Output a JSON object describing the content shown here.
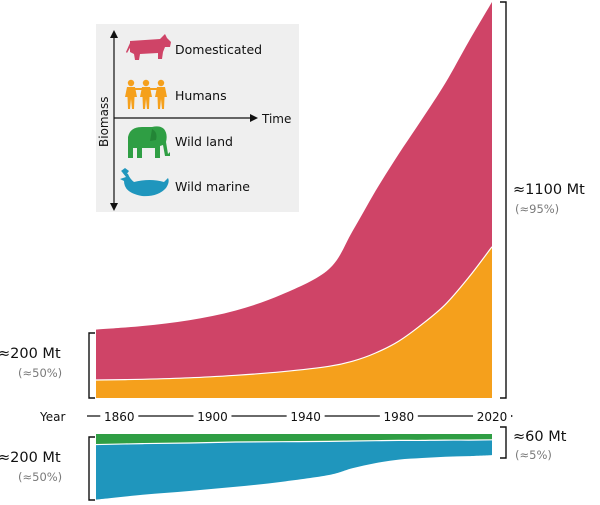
{
  "chart_data": {
    "type": "area",
    "x_axis_label": "Year",
    "x_ticks": [
      1860,
      1900,
      1940,
      1980,
      2020
    ],
    "stacked": true,
    "upper_panel": {
      "series": [
        {
          "name": "Humans",
          "color": "#f5a01c",
          "x": [
            1850,
            1870,
            1890,
            1910,
            1930,
            1950,
            1960,
            1970,
            1980,
            1990,
            2000,
            2010,
            2020
          ],
          "values": [
            50,
            52,
            56,
            63,
            73,
            88,
            102,
            125,
            158,
            205,
            260,
            335,
            420
          ]
        },
        {
          "name": "Domesticated",
          "color": "#cf4467",
          "x": [
            1850,
            1870,
            1890,
            1910,
            1930,
            1950,
            1960,
            1970,
            1980,
            1990,
            2000,
            2010,
            2020
          ],
          "values": [
            140,
            148,
            160,
            180,
            215,
            270,
            360,
            450,
            520,
            570,
            615,
            655,
            680
          ]
        }
      ]
    },
    "lower_panel": {
      "series": [
        {
          "name": "Wild marine",
          "color": "#1f96bd",
          "x": [
            1850,
            1870,
            1890,
            1910,
            1930,
            1950,
            1960,
            1970,
            1980,
            1990,
            2000,
            2010,
            2020
          ],
          "values": [
            172,
            160,
            150,
            140,
            125,
            105,
            85,
            70,
            60,
            55,
            52,
            50,
            48
          ]
        },
        {
          "name": "Wild land",
          "color": "#2f9e44",
          "x": [
            1850,
            1870,
            1890,
            1910,
            1930,
            1950,
            1960,
            1970,
            1980,
            1990,
            2000,
            2010,
            2020
          ],
          "values": [
            33,
            30,
            28,
            25,
            24,
            23,
            22,
            21,
            20,
            20,
            19,
            19,
            18
          ]
        }
      ]
    },
    "annotations": {
      "left_top": {
        "value": "≈200 Mt",
        "percent": "(≈50%)"
      },
      "left_bottom": {
        "value": "≈200 Mt",
        "percent": "(≈50%)"
      },
      "right_top": {
        "value": "≈1100 Mt",
        "percent": "(≈95%)"
      },
      "right_bottom": {
        "value": "≈60 Mt",
        "percent": "(≈5%)"
      }
    },
    "legend": {
      "position": "top-left",
      "y_axis_label": "Biomass",
      "x_axis_label": "Time",
      "entries": [
        {
          "label": "Domesticated",
          "icon": "cow-icon",
          "color": "#cf4467"
        },
        {
          "label": "Humans",
          "icon": "humans-icon",
          "color": "#f5a01c"
        },
        {
          "label": "Wild land",
          "icon": "elephant-icon",
          "color": "#2f9e44"
        },
        {
          "label": "Wild marine",
          "icon": "whale-icon",
          "color": "#1f96bd"
        }
      ]
    }
  }
}
